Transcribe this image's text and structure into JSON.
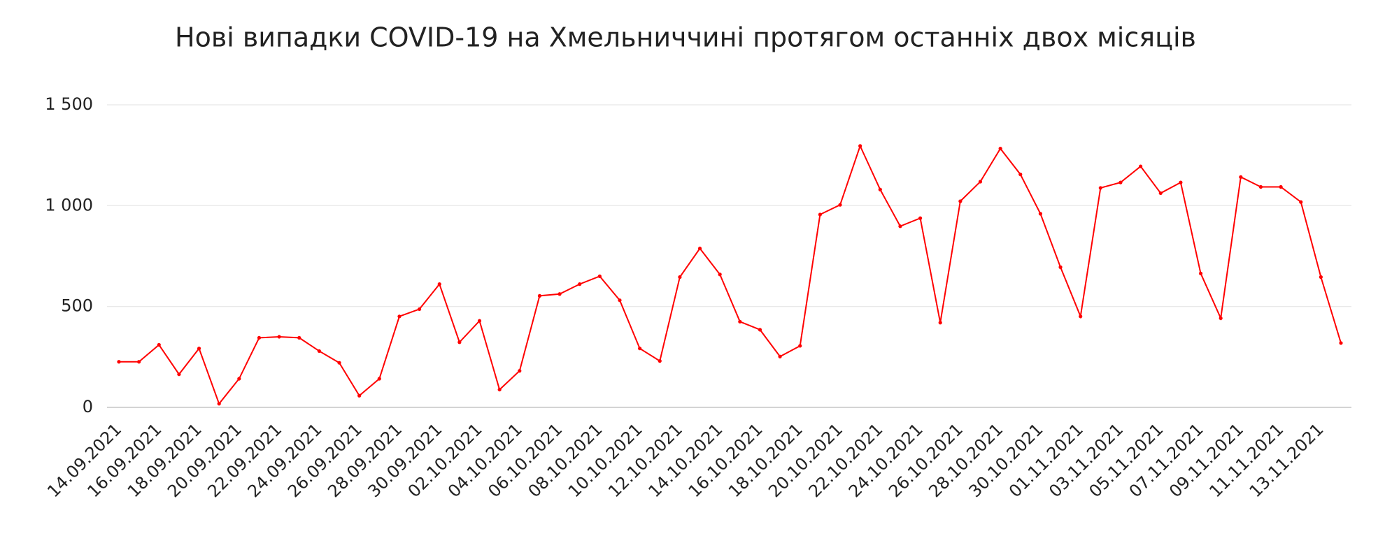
{
  "chart_data": {
    "type": "line",
    "title": "Нові випадки COVID-19 на Хмельниччині протягом останніх двох місяців",
    "categories": [
      "14.09.2021",
      null,
      "16.09.2021",
      null,
      "18.09.2021",
      null,
      "20.09.2021",
      null,
      "22.09.2021",
      null,
      "24.09.2021",
      null,
      "26.09.2021",
      null,
      "28.09.2021",
      null,
      "30.09.2021",
      null,
      "02.10.2021",
      null,
      "04.10.2021",
      null,
      "06.10.2021",
      null,
      "08.10.2021",
      null,
      "10.10.2021",
      null,
      "12.10.2021",
      null,
      "14.10.2021",
      null,
      "16.10.2021",
      null,
      "18.10.2021",
      null,
      "20.10.2021",
      null,
      "22.10.2021",
      null,
      "24.10.2021",
      null,
      "26.10.2021",
      null,
      "28.10.2021",
      null,
      "30.10.2021",
      null,
      "01.11.2021",
      null,
      "03.11.2021",
      null,
      "05.11.2021",
      null,
      "07.11.2021",
      null,
      "09.11.2021",
      null,
      "11.11.2021",
      null,
      "13.11.2021",
      null
    ],
    "values": [
      226,
      226,
      310,
      164,
      292,
      18,
      142,
      345,
      350,
      345,
      279,
      221,
      58,
      142,
      451,
      487,
      611,
      323,
      429,
      88,
      181,
      553,
      562,
      611,
      650,
      531,
      292,
      230,
      646,
      788,
      659,
      425,
      385,
      252,
      305,
      956,
      1004,
      1296,
      1080,
      898,
      938,
      420,
      1022,
      1119,
      1283,
      1155,
      960,
      695,
      451,
      1088,
      1115,
      1195,
      1062,
      1115,
      664,
      442,
      1142,
      1093,
      1093,
      1018,
      646,
      319
    ],
    "color": "#ff0000",
    "ylim": [
      0,
      1500
    ],
    "yticks": [
      0,
      500,
      {
        "value": 1000,
        "label": "1 000"
      },
      {
        "value": 1500,
        "label": "1 500"
      }
    ],
    "grid": true
  }
}
